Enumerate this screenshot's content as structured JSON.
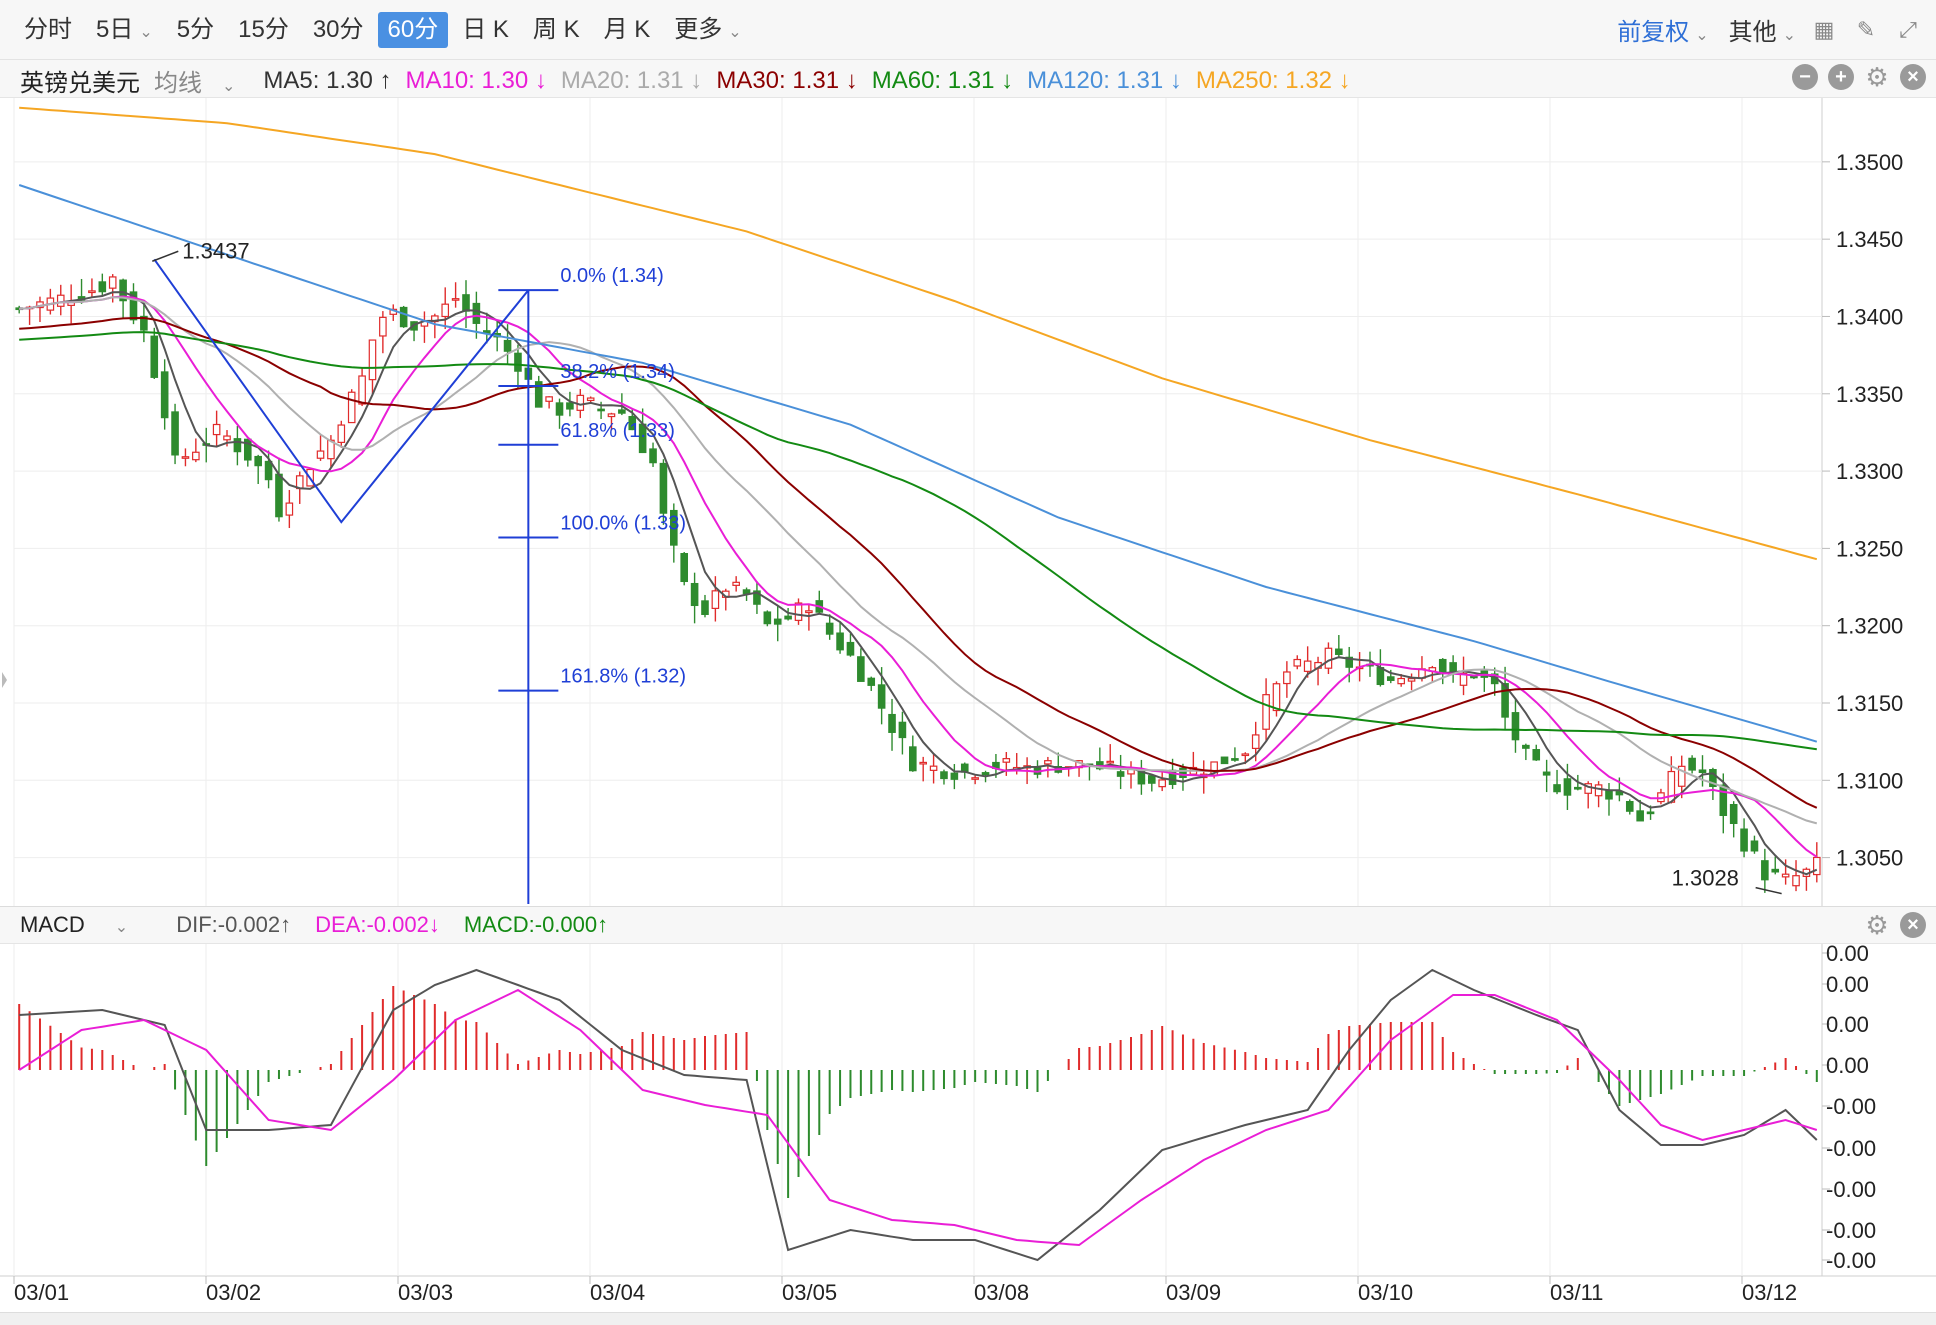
{
  "toolbar": {
    "tabs": [
      {
        "label": "分时",
        "active": false
      },
      {
        "label": "5日",
        "active": false,
        "dropdown": true
      },
      {
        "label": "5分",
        "active": false
      },
      {
        "label": "15分",
        "active": false
      },
      {
        "label": "30分",
        "active": false
      },
      {
        "label": "60分",
        "active": true
      },
      {
        "label": "日 K",
        "active": false
      },
      {
        "label": "周 K",
        "active": false
      },
      {
        "label": "月 K",
        "active": false
      },
      {
        "label": "更多",
        "active": false,
        "dropdown": true
      }
    ],
    "adjust_label": "前复权",
    "other_label": "其他",
    "icons": [
      "grid-icon",
      "pen-icon",
      "fullscreen-icon"
    ]
  },
  "ma_bar": {
    "symbol": "英镑兑美元",
    "avg_label": "均线",
    "items": [
      {
        "label": "MA5: 1.30",
        "arrow": "↑",
        "color": "#333333"
      },
      {
        "label": "MA10: 1.30",
        "arrow": "↓",
        "color": "#e91ed6"
      },
      {
        "label": "MA20: 1.31",
        "arrow": "↓",
        "color": "#aaaaaa"
      },
      {
        "label": "MA30: 1.31",
        "arrow": "↓",
        "color": "#8b0000"
      },
      {
        "label": "MA60: 1.31",
        "arrow": "↓",
        "color": "#138a13"
      },
      {
        "label": "MA120: 1.31",
        "arrow": "↓",
        "color": "#4a90d9"
      },
      {
        "label": "MA250: 1.32",
        "arrow": "↓",
        "color": "#f5a623"
      }
    ]
  },
  "macd_bar": {
    "name": "MACD",
    "dif": "DIF:-0.002↑",
    "dea": "DEA:-0.002↓",
    "macd": "MACD:-0.000↑"
  },
  "chart_data": {
    "type": "candlestick",
    "price_axis": {
      "min": 1.302,
      "max": 1.354,
      "ticks": [
        "1.3500",
        "1.3450",
        "1.3400",
        "1.3350",
        "1.3300",
        "1.3250",
        "1.3200",
        "1.3150",
        "1.3100",
        "1.3050"
      ]
    },
    "macd_axis": {
      "ticks": [
        "0.00",
        "0.00",
        "0.00",
        "0.00",
        "-0.00",
        "-0.00",
        "-0.00",
        "-0.00",
        "-0.00"
      ]
    },
    "dates": [
      "03/01",
      "03/02",
      "03/03",
      "03/04",
      "03/05",
      "03/08",
      "03/09",
      "03/10",
      "03/11",
      "03/12"
    ],
    "annotations": {
      "high": "1.3437",
      "low": "1.3028"
    },
    "fibonacci": [
      {
        "label": "0.0% (1.34)",
        "value": 1.3417
      },
      {
        "label": "38.2% (1.34)",
        "value": 1.3355
      },
      {
        "label": "61.8% (1.33)",
        "value": 1.3317
      },
      {
        "label": "100.0% (1.33)",
        "value": 1.3257
      },
      {
        "label": "161.8% (1.32)",
        "value": 1.3158
      }
    ],
    "close_points": [
      [
        0,
        1.3405
      ],
      [
        3,
        1.341
      ],
      [
        6,
        1.3415
      ],
      [
        8,
        1.342
      ],
      [
        9,
        1.3425
      ],
      [
        10,
        1.3412
      ],
      [
        12,
        1.339
      ],
      [
        14,
        1.334
      ],
      [
        15,
        1.3305
      ],
      [
        17,
        1.3315
      ],
      [
        19,
        1.3325
      ],
      [
        20,
        1.3322
      ],
      [
        22,
        1.331
      ],
      [
        24,
        1.3295
      ],
      [
        25,
        1.3275
      ],
      [
        27,
        1.3295
      ],
      [
        28,
        1.3305
      ],
      [
        30,
        1.332
      ],
      [
        31,
        1.3335
      ],
      [
        33,
        1.336
      ],
      [
        34,
        1.3385
      ],
      [
        35,
        1.34
      ],
      [
        36,
        1.3402
      ],
      [
        38,
        1.3395
      ],
      [
        40,
        1.34
      ],
      [
        42,
        1.3412
      ],
      [
        44,
        1.3395
      ],
      [
        46,
        1.3385
      ],
      [
        48,
        1.337
      ],
      [
        50,
        1.3345
      ],
      [
        52,
        1.334
      ],
      [
        54,
        1.3345
      ],
      [
        56,
        1.334
      ],
      [
        58,
        1.3338
      ],
      [
        59,
        1.3328
      ],
      [
        61,
        1.3305
      ],
      [
        62,
        1.327
      ],
      [
        64,
        1.3225
      ],
      [
        66,
        1.321
      ],
      [
        68,
        1.3225
      ],
      [
        70,
        1.322
      ],
      [
        72,
        1.32
      ],
      [
        74,
        1.3205
      ],
      [
        76,
        1.3215
      ],
      [
        78,
        1.3195
      ],
      [
        80,
        1.318
      ],
      [
        82,
        1.316
      ],
      [
        84,
        1.3135
      ],
      [
        86,
        1.3112
      ],
      [
        88,
        1.3108
      ],
      [
        91,
        1.3105
      ],
      [
        94,
        1.311
      ],
      [
        97,
        1.3108
      ],
      [
        100,
        1.311
      ],
      [
        103,
        1.311
      ],
      [
        106,
        1.3105
      ],
      [
        109,
        1.31
      ],
      [
        112,
        1.3105
      ],
      [
        115,
        1.311
      ],
      [
        118,
        1.312
      ],
      [
        120,
        1.315
      ],
      [
        122,
        1.317
      ],
      [
        124,
        1.3175
      ],
      [
        126,
        1.318
      ],
      [
        128,
        1.3175
      ],
      [
        130,
        1.317
      ],
      [
        132,
        1.3165
      ],
      [
        134,
        1.317
      ],
      [
        136,
        1.3178
      ],
      [
        138,
        1.3165
      ],
      [
        140,
        1.317
      ],
      [
        142,
        1.316
      ],
      [
        143,
        1.314
      ],
      [
        145,
        1.3115
      ],
      [
        147,
        1.31
      ],
      [
        149,
        1.3095
      ],
      [
        152,
        1.3095
      ],
      [
        154,
        1.309
      ],
      [
        156,
        1.3075
      ],
      [
        158,
        1.309
      ],
      [
        160,
        1.311
      ],
      [
        162,
        1.3105
      ],
      [
        164,
        1.308
      ],
      [
        166,
        1.306
      ],
      [
        168,
        1.304
      ],
      [
        170,
        1.3035
      ],
      [
        172,
        1.304
      ],
      [
        173,
        1.3045
      ]
    ],
    "ma_series": [
      {
        "name": "MA5",
        "color": "#555555"
      },
      {
        "name": "MA10",
        "color": "#e91ed6"
      },
      {
        "name": "MA20",
        "color": "#b0b0b0"
      },
      {
        "name": "MA30",
        "color": "#8b0000"
      },
      {
        "name": "MA60",
        "color": "#138a13"
      },
      {
        "name": "MA120",
        "color": "#4a90d9",
        "points": [
          [
            0,
            1.3485
          ],
          [
            20,
            1.344
          ],
          [
            40,
            1.3395
          ],
          [
            60,
            1.337
          ],
          [
            80,
            1.333
          ],
          [
            100,
            1.327
          ],
          [
            120,
            1.3225
          ],
          [
            140,
            1.319
          ],
          [
            155,
            1.316
          ],
          [
            173,
            1.3125
          ]
        ]
      },
      {
        "name": "MA250",
        "color": "#f5a623",
        "points": [
          [
            0,
            1.3535
          ],
          [
            20,
            1.3525
          ],
          [
            40,
            1.3505
          ],
          [
            55,
            1.348
          ],
          [
            70,
            1.3455
          ],
          [
            90,
            1.341
          ],
          [
            110,
            1.336
          ],
          [
            130,
            1.332
          ],
          [
            150,
            1.3285
          ],
          [
            173,
            1.3243
          ]
        ]
      }
    ],
    "zigzag": [
      [
        13,
        1.3437
      ],
      [
        31,
        1.3267
      ],
      [
        49,
        1.3417
      ]
    ],
    "macd": {
      "dif_points": [
        [
          0,
          0.55
        ],
        [
          8,
          0.6
        ],
        [
          14,
          0.45
        ],
        [
          18,
          -0.6
        ],
        [
          24,
          -0.6
        ],
        [
          30,
          -0.55
        ],
        [
          36,
          0.6
        ],
        [
          40,
          0.85
        ],
        [
          44,
          1.0
        ],
        [
          52,
          0.7
        ],
        [
          58,
          0.2
        ],
        [
          64,
          -0.05
        ],
        [
          70,
          -0.1
        ],
        [
          74,
          -1.8
        ],
        [
          80,
          -1.6
        ],
        [
          86,
          -1.7
        ],
        [
          92,
          -1.7
        ],
        [
          98,
          -1.9
        ],
        [
          104,
          -1.4
        ],
        [
          110,
          -0.8
        ],
        [
          118,
          -0.55
        ],
        [
          124,
          -0.4
        ],
        [
          128,
          0.2
        ],
        [
          132,
          0.7
        ],
        [
          136,
          1.0
        ],
        [
          140,
          0.8
        ],
        [
          146,
          0.55
        ],
        [
          150,
          0.4
        ],
        [
          154,
          -0.4
        ],
        [
          158,
          -0.75
        ],
        [
          162,
          -0.75
        ],
        [
          166,
          -0.65
        ],
        [
          170,
          -0.4
        ],
        [
          173,
          -0.7
        ]
      ],
      "dea_points": [
        [
          0,
          0.0
        ],
        [
          6,
          0.4
        ],
        [
          12,
          0.5
        ],
        [
          18,
          0.2
        ],
        [
          24,
          -0.5
        ],
        [
          30,
          -0.6
        ],
        [
          36,
          -0.1
        ],
        [
          42,
          0.5
        ],
        [
          48,
          0.8
        ],
        [
          54,
          0.4
        ],
        [
          60,
          -0.2
        ],
        [
          66,
          -0.35
        ],
        [
          72,
          -0.45
        ],
        [
          78,
          -1.3
        ],
        [
          84,
          -1.5
        ],
        [
          90,
          -1.55
        ],
        [
          96,
          -1.7
        ],
        [
          102,
          -1.75
        ],
        [
          108,
          -1.3
        ],
        [
          114,
          -0.9
        ],
        [
          120,
          -0.6
        ],
        [
          126,
          -0.4
        ],
        [
          132,
          0.3
        ],
        [
          138,
          0.75
        ],
        [
          142,
          0.75
        ],
        [
          148,
          0.5
        ],
        [
          154,
          -0.1
        ],
        [
          158,
          -0.55
        ],
        [
          162,
          -0.7
        ],
        [
          166,
          -0.6
        ],
        [
          170,
          -0.5
        ],
        [
          173,
          -0.6
        ]
      ]
    }
  }
}
